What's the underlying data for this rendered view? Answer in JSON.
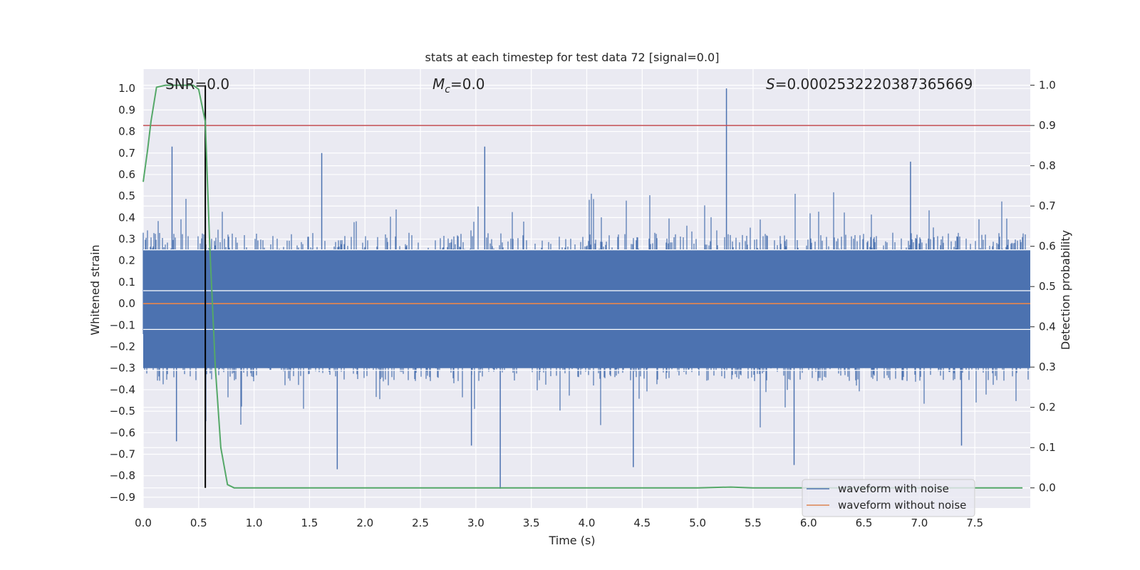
{
  "chart_data": {
    "type": "line",
    "title": "stats at each timestep for test data 72 [signal=0.0]",
    "xlabel": "Time (s)",
    "ylabel_left": "Whitened strain",
    "ylabel_right": "Detection probability",
    "xlim": [
      0.0,
      8.0
    ],
    "ylim_left": [
      -0.95,
      1.09
    ],
    "ylim_right": [
      -0.05,
      1.04
    ],
    "x_ticks": [
      "0.0",
      "0.5",
      "1.0",
      "1.5",
      "2.0",
      "2.5",
      "3.0",
      "3.5",
      "4.0",
      "4.5",
      "5.0",
      "5.5",
      "6.0",
      "6.5",
      "7.0",
      "7.5"
    ],
    "y_ticks_left": [
      "-0.9",
      "-0.8",
      "-0.7",
      "-0.6",
      "-0.5",
      "-0.4",
      "-0.3",
      "-0.2",
      "-0.1",
      "0.0",
      "0.1",
      "0.2",
      "0.3",
      "0.4",
      "0.5",
      "0.6",
      "0.7",
      "0.8",
      "0.9",
      "1.0"
    ],
    "y_ticks_right": [
      "0.0",
      "0.1",
      "0.2",
      "0.3",
      "0.4",
      "0.5",
      "0.6",
      "0.7",
      "0.8",
      "0.9",
      "1.0"
    ],
    "annotations": {
      "snr": "SNR=0.0",
      "mc_symbol": "M",
      "mc_sub": "c",
      "mc_value": "=0.0",
      "s_symbol": "S",
      "s_value": "=0.0002532220387365669"
    },
    "threshold_line": {
      "axis": "right",
      "value": 0.9,
      "color": "#c44e52"
    },
    "marker_line": {
      "x": 0.56,
      "color": "#000000"
    },
    "series": [
      {
        "name": "waveform with noise",
        "axis": "left",
        "color": "#4c72b0",
        "description": "whitened noise, roughly symmetric, band about ±0.3 with spikes",
        "envelope_upper": 0.3,
        "envelope_lower": -0.33,
        "spikes": [
          {
            "x": 0.26,
            "y": 0.73
          },
          {
            "x": 0.3,
            "y": -0.64
          },
          {
            "x": 1.61,
            "y": 0.7
          },
          {
            "x": 1.75,
            "y": -0.77
          },
          {
            "x": 3.08,
            "y": 0.73
          },
          {
            "x": 3.22,
            "y": -0.86
          },
          {
            "x": 2.96,
            "y": -0.66
          },
          {
            "x": 4.42,
            "y": -0.76
          },
          {
            "x": 5.26,
            "y": 1.0
          },
          {
            "x": 5.87,
            "y": -0.75
          },
          {
            "x": 6.92,
            "y": 0.66
          },
          {
            "x": 7.38,
            "y": -0.66
          }
        ]
      },
      {
        "name": "waveform without noise",
        "axis": "left",
        "color": "#dd8452",
        "x": [
          0.0,
          8.0
        ],
        "y": [
          0.0,
          0.0
        ]
      },
      {
        "name": "detection probability",
        "axis": "right",
        "color": "#55a868",
        "x": [
          0.0,
          0.04,
          0.07,
          0.12,
          0.2,
          0.3,
          0.4,
          0.45,
          0.5,
          0.56,
          0.6,
          0.65,
          0.7,
          0.76,
          0.82,
          1.0,
          2.0,
          3.0,
          4.0,
          5.0,
          5.3,
          5.5,
          6.0,
          7.0,
          7.93
        ],
        "y": [
          0.76,
          0.84,
          0.91,
          0.995,
          1.0,
          1.0,
          1.0,
          1.0,
          0.99,
          0.91,
          0.6,
          0.3,
          0.1,
          0.008,
          0.0,
          0.0,
          0.0,
          0.0,
          0.0,
          0.0,
          0.002,
          0.0,
          0.0,
          0.0,
          0.0
        ]
      }
    ],
    "legend": {
      "position": "lower-right",
      "entries": [
        {
          "label": "waveform with noise",
          "color": "#4c72b0"
        },
        {
          "label": "waveform without noise",
          "color": "#dd8452"
        }
      ]
    }
  }
}
